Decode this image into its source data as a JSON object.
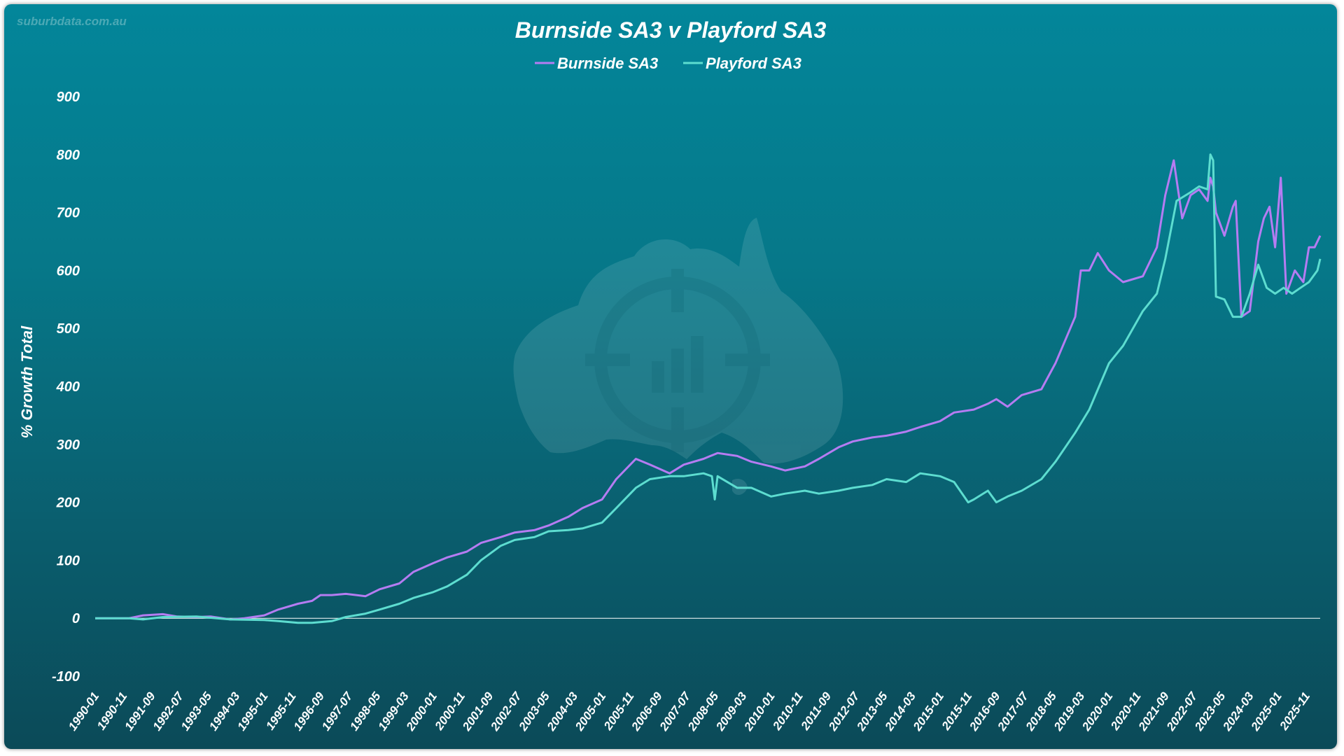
{
  "watermark_text": "suburbdata.com.au",
  "chart_data": {
    "type": "line",
    "title": "Burnside SA3 v Playford SA3",
    "xlabel": "",
    "ylabel": "% Growth Total",
    "ylim": [
      -100,
      900
    ],
    "yticks": [
      -100,
      0,
      100,
      200,
      300,
      400,
      500,
      600,
      700,
      800,
      900
    ],
    "xtick_labels": [
      "1990-01",
      "1990-11",
      "1991-09",
      "1992-07",
      "1993-05",
      "1994-03",
      "1995-01",
      "1995-11",
      "1996-09",
      "1997-07",
      "1998-05",
      "1999-03",
      "2000-01",
      "2000-11",
      "2001-09",
      "2002-07",
      "2003-05",
      "2004-03",
      "2005-01",
      "2005-11",
      "2006-09",
      "2007-07",
      "2008-05",
      "2009-03",
      "2010-01",
      "2010-11",
      "2011-09",
      "2012-07",
      "2013-05",
      "2014-03",
      "2015-01",
      "2015-11",
      "2016-09",
      "2017-07",
      "2018-05",
      "2019-03",
      "2020-01",
      "2020-11",
      "2021-09",
      "2022-07",
      "2023-05",
      "2024-03",
      "2025-01",
      "2025-11"
    ],
    "x_range": [
      "1990-01",
      "2026-04"
    ],
    "legend_position": "top-center",
    "grid": false,
    "series": [
      {
        "name": "Burnside SA3",
        "color": "#b57cf2",
        "x": [
          "1990-01",
          "1991-01",
          "1991-06",
          "1992-01",
          "1992-06",
          "1993-01",
          "1993-06",
          "1994-01",
          "1994-06",
          "1995-01",
          "1995-06",
          "1996-01",
          "1996-06",
          "1996-09",
          "1997-01",
          "1997-06",
          "1998-01",
          "1998-06",
          "1999-01",
          "1999-06",
          "2000-01",
          "2000-06",
          "2001-01",
          "2001-06",
          "2002-01",
          "2002-06",
          "2003-01",
          "2003-06",
          "2004-01",
          "2004-06",
          "2005-01",
          "2005-06",
          "2006-01",
          "2006-06",
          "2007-01",
          "2007-06",
          "2008-01",
          "2008-06",
          "2009-01",
          "2009-06",
          "2010-01",
          "2010-06",
          "2011-01",
          "2011-06",
          "2012-01",
          "2012-06",
          "2013-01",
          "2013-06",
          "2014-01",
          "2014-06",
          "2015-01",
          "2015-06",
          "2016-01",
          "2016-06",
          "2016-09",
          "2017-01",
          "2017-06",
          "2018-01",
          "2018-06",
          "2019-01",
          "2019-03",
          "2019-06",
          "2019-09",
          "2020-01",
          "2020-06",
          "2021-01",
          "2021-06",
          "2021-09",
          "2021-12",
          "2022-03",
          "2022-06",
          "2022-09",
          "2022-12",
          "2023-01",
          "2023-02",
          "2023-03",
          "2023-06",
          "2023-09",
          "2023-10",
          "2023-12",
          "2024-03",
          "2024-06",
          "2024-08",
          "2024-10",
          "2024-12",
          "2025-02",
          "2025-04",
          "2025-07",
          "2025-10",
          "2025-12",
          "2026-02",
          "2026-04"
        ],
        "y": [
          0,
          0,
          5,
          7,
          3,
          2,
          3,
          -2,
          0,
          5,
          15,
          25,
          30,
          40,
          40,
          42,
          38,
          50,
          60,
          80,
          95,
          105,
          115,
          130,
          140,
          148,
          152,
          160,
          175,
          190,
          205,
          240,
          275,
          265,
          250,
          265,
          275,
          285,
          280,
          270,
          262,
          255,
          262,
          275,
          295,
          305,
          312,
          315,
          322,
          330,
          340,
          355,
          360,
          370,
          378,
          365,
          385,
          395,
          440,
          520,
          600,
          600,
          630,
          600,
          580,
          590,
          640,
          730,
          790,
          690,
          730,
          740,
          720,
          760,
          745,
          700,
          660,
          710,
          720,
          520,
          530,
          650,
          690,
          710,
          640,
          760,
          560,
          600,
          580,
          640,
          640,
          660
        ]
      },
      {
        "name": "Playford SA3",
        "color": "#5dddd0",
        "x": [
          "1990-01",
          "1991-01",
          "1991-06",
          "1992-01",
          "1993-01",
          "1994-01",
          "1995-01",
          "1995-06",
          "1996-01",
          "1996-06",
          "1997-01",
          "1997-06",
          "1998-01",
          "1998-06",
          "1999-01",
          "1999-06",
          "2000-01",
          "2000-06",
          "2001-01",
          "2001-06",
          "2002-01",
          "2002-06",
          "2003-01",
          "2003-06",
          "2004-01",
          "2004-06",
          "2005-01",
          "2005-06",
          "2006-01",
          "2006-06",
          "2007-01",
          "2007-06",
          "2008-01",
          "2008-04",
          "2008-05",
          "2008-06",
          "2009-01",
          "2009-06",
          "2010-01",
          "2010-06",
          "2011-01",
          "2011-06",
          "2012-01",
          "2012-06",
          "2013-01",
          "2013-06",
          "2014-01",
          "2014-06",
          "2015-01",
          "2015-06",
          "2015-11",
          "2016-01",
          "2016-06",
          "2016-09",
          "2017-01",
          "2017-06",
          "2018-01",
          "2018-06",
          "2019-01",
          "2019-06",
          "2020-01",
          "2020-06",
          "2021-01",
          "2021-06",
          "2021-09",
          "2022-01",
          "2022-06",
          "2022-09",
          "2022-12",
          "2023-01",
          "2023-02",
          "2023-03",
          "2023-06",
          "2023-09",
          "2023-12",
          "2024-03",
          "2024-06",
          "2024-09",
          "2024-12",
          "2025-03",
          "2025-06",
          "2025-09",
          "2025-12",
          "2026-03",
          "2026-04"
        ],
        "y": [
          0,
          0,
          -2,
          2,
          3,
          -2,
          -3,
          -5,
          -8,
          -8,
          -5,
          2,
          8,
          15,
          25,
          35,
          45,
          55,
          75,
          100,
          125,
          135,
          140,
          150,
          152,
          155,
          165,
          190,
          225,
          240,
          245,
          245,
          250,
          245,
          205,
          245,
          225,
          225,
          210,
          215,
          220,
          215,
          220,
          225,
          230,
          240,
          235,
          250,
          245,
          235,
          200,
          205,
          220,
          200,
          210,
          220,
          240,
          270,
          320,
          360,
          440,
          470,
          530,
          560,
          620,
          720,
          735,
          745,
          740,
          800,
          790,
          555,
          550,
          520,
          520,
          560,
          610,
          570,
          560,
          570,
          560,
          570,
          580,
          600,
          620
        ]
      }
    ]
  }
}
